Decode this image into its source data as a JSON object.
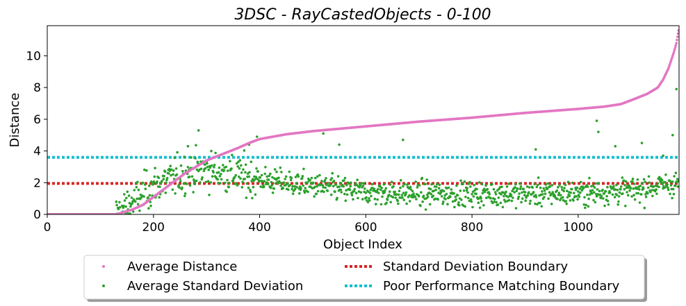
{
  "chart_data": {
    "type": "scatter",
    "title": "3DSC - RayCastedObjects - 0-100",
    "xlabel": "Object Index",
    "ylabel": "Distance",
    "xlim": [
      0,
      1190
    ],
    "ylim": [
      0,
      11.9
    ],
    "x_ticks": [
      0,
      200,
      400,
      600,
      800,
      1000
    ],
    "y_ticks": [
      0,
      2,
      4,
      6,
      8,
      10
    ],
    "grid": false,
    "legend_position": "bottom-center",
    "legend_columns": 2,
    "series": [
      {
        "name": "Average Distance",
        "kind": "points",
        "color": "#e377c2",
        "n_points": 1190,
        "curve_keypoints": [
          [
            0,
            0
          ],
          [
            130,
            0
          ],
          [
            140,
            0.1
          ],
          [
            160,
            0.3
          ],
          [
            180,
            0.6
          ],
          [
            200,
            1.1
          ],
          [
            220,
            1.6
          ],
          [
            240,
            2.1
          ],
          [
            260,
            2.6
          ],
          [
            280,
            3.0
          ],
          [
            300,
            3.4
          ],
          [
            330,
            3.8
          ],
          [
            360,
            4.2
          ],
          [
            380,
            4.5
          ],
          [
            400,
            4.75
          ],
          [
            450,
            5.05
          ],
          [
            500,
            5.25
          ],
          [
            600,
            5.55
          ],
          [
            700,
            5.85
          ],
          [
            800,
            6.1
          ],
          [
            900,
            6.4
          ],
          [
            1000,
            6.65
          ],
          [
            1050,
            6.8
          ],
          [
            1080,
            6.95
          ],
          [
            1100,
            7.2
          ],
          [
            1130,
            7.6
          ],
          [
            1150,
            8.0
          ],
          [
            1160,
            8.5
          ],
          [
            1170,
            9.2
          ],
          [
            1180,
            10.2
          ],
          [
            1185,
            10.8
          ],
          [
            1189,
            11.6
          ]
        ]
      },
      {
        "name": "Average Standard Deviation",
        "kind": "points",
        "color": "#2ca02c",
        "n_points": 1190,
        "trend_keypoints": [
          [
            0,
            0
          ],
          [
            130,
            0
          ],
          [
            150,
            0.5
          ],
          [
            200,
            1.8
          ],
          [
            260,
            2.6
          ],
          [
            300,
            2.8
          ],
          [
            350,
            2.5
          ],
          [
            400,
            2.2
          ],
          [
            500,
            1.8
          ],
          [
            600,
            1.4
          ],
          [
            700,
            1.3
          ],
          [
            800,
            1.3
          ],
          [
            900,
            1.3
          ],
          [
            1000,
            1.35
          ],
          [
            1100,
            1.5
          ],
          [
            1189,
            2.0
          ]
        ],
        "outliers": [
          [
            285,
            5.3
          ],
          [
            265,
            4.3
          ],
          [
            380,
            4.4
          ],
          [
            395,
            4.9
          ],
          [
            520,
            5.1
          ],
          [
            550,
            4.4
          ],
          [
            670,
            4.7
          ],
          [
            1035,
            5.9
          ],
          [
            1038,
            5.2
          ],
          [
            1185,
            7.9
          ],
          [
            1178,
            5.0
          ],
          [
            1120,
            4.5
          ],
          [
            1070,
            4.3
          ],
          [
            920,
            4.1
          ],
          [
            1160,
            3.7
          ]
        ]
      },
      {
        "name": "Standard Deviation Boundary",
        "kind": "hline",
        "color": "#d62728",
        "y": 1.95
      },
      {
        "name": "Poor Performance Matching Boundary",
        "kind": "hline",
        "color": "#17becf",
        "y": 3.6
      }
    ]
  }
}
